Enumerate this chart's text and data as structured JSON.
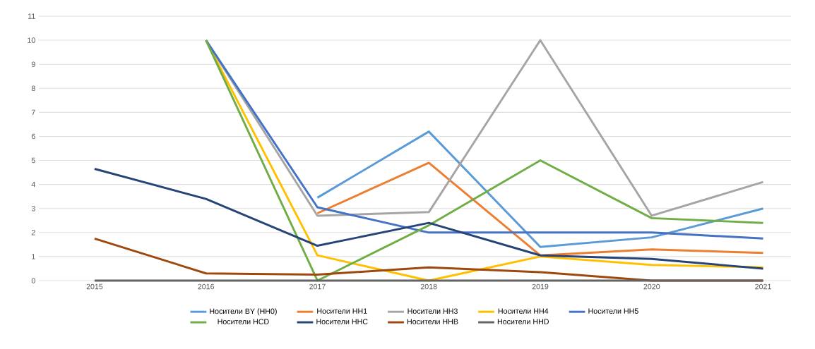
{
  "chart_data": {
    "type": "line",
    "categories": [
      "2015",
      "2016",
      "2017",
      "2018",
      "2019",
      "2020",
      "2021"
    ],
    "ylim": [
      0,
      11
    ],
    "yticks": [
      0,
      1,
      2,
      3,
      4,
      5,
      6,
      7,
      8,
      9,
      10,
      11
    ],
    "grid": "y",
    "legend": "bottom",
    "marker": "none",
    "series": [
      {
        "name": "Носители BY (HH0)",
        "color": "#5b9bd5",
        "values": [
          null,
          null,
          3.45,
          6.2,
          1.4,
          1.8,
          3.0
        ]
      },
      {
        "name": "Носители HH1",
        "color": "#ed7d31",
        "values": [
          null,
          null,
          2.8,
          4.9,
          1.05,
          1.3,
          1.15
        ]
      },
      {
        "name": "Носители HH3",
        "color": "#a5a5a5",
        "values": [
          null,
          10,
          2.7,
          2.85,
          10,
          2.7,
          4.1
        ]
      },
      {
        "name": "Носители HH4",
        "color": "#ffc000",
        "values": [
          null,
          10,
          1.05,
          0,
          1.0,
          0.65,
          0.55
        ]
      },
      {
        "name": "Носители HH5",
        "color": "#4472c4",
        "values": [
          null,
          10,
          3.05,
          2.0,
          2.0,
          2.0,
          1.75
        ]
      },
      {
        "name": "Носители HCD",
        "color": "#70ad47",
        "values": [
          null,
          10,
          0,
          2.3,
          5.0,
          2.6,
          2.4
        ]
      },
      {
        "name": "Носители HHC",
        "color": "#264478",
        "values": [
          4.65,
          3.4,
          1.45,
          2.4,
          1.05,
          0.9,
          0.5
        ]
      },
      {
        "name": "Носители HHB",
        "color": "#9e480e",
        "values": [
          1.75,
          0.3,
          0.25,
          0.55,
          0.35,
          0,
          0
        ]
      },
      {
        "name": "Носители HHD",
        "color": "#636363",
        "values": [
          0,
          0,
          0,
          0,
          0,
          0,
          0
        ]
      }
    ]
  }
}
